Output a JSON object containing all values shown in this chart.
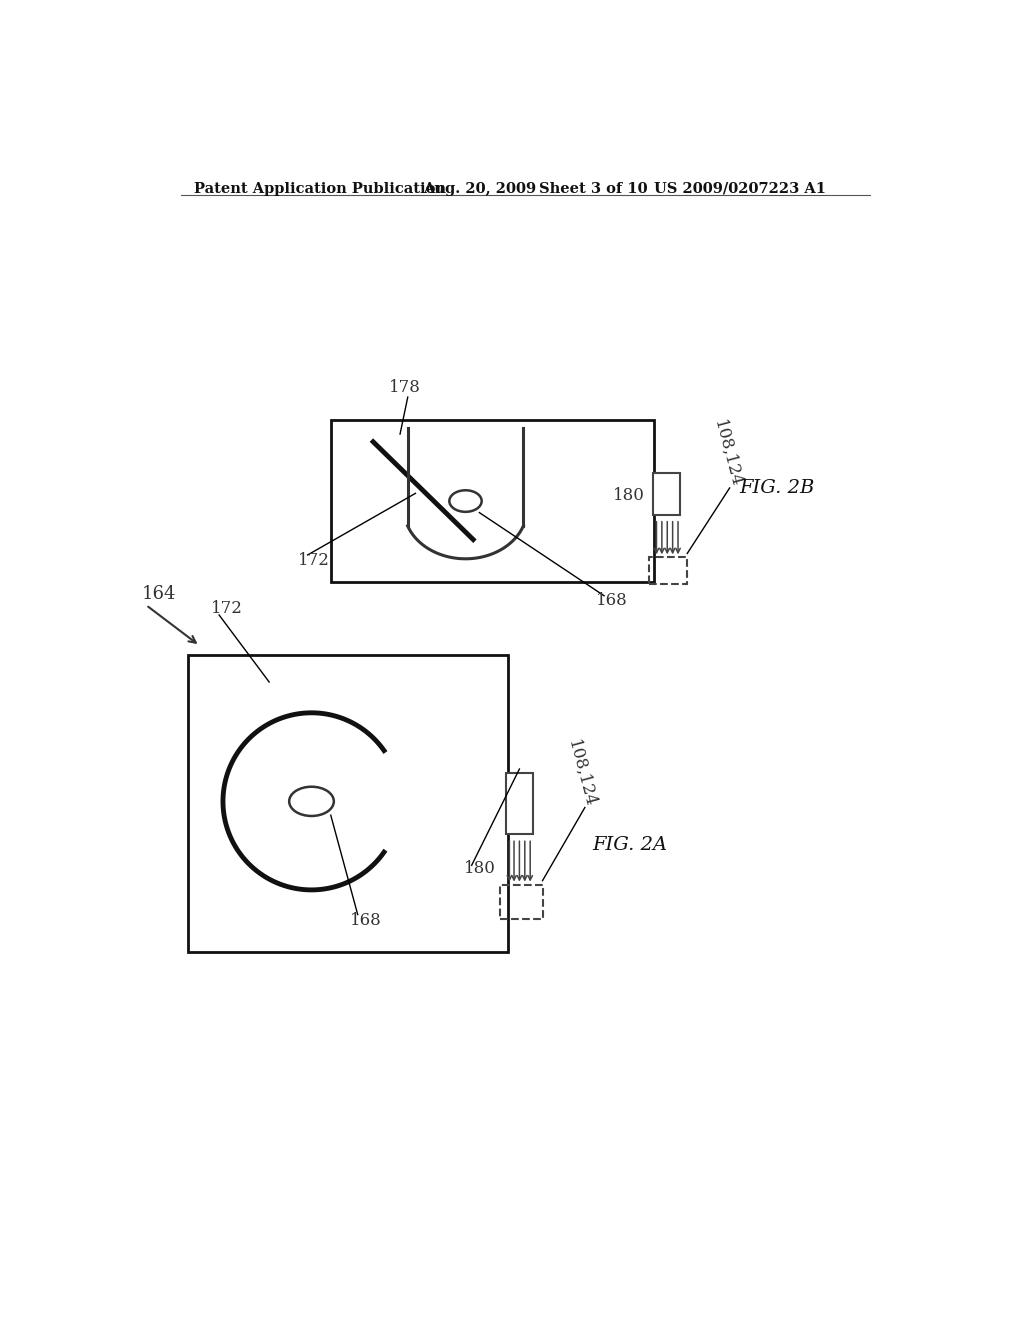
{
  "bg_color": "#ffffff",
  "header_text": "Patent Application Publication",
  "header_date": "Aug. 20, 2009",
  "header_sheet": "Sheet 3 of 10",
  "header_patent": "US 2009/0207223 A1",
  "line_color": "#000000",
  "text_color": "#333333"
}
